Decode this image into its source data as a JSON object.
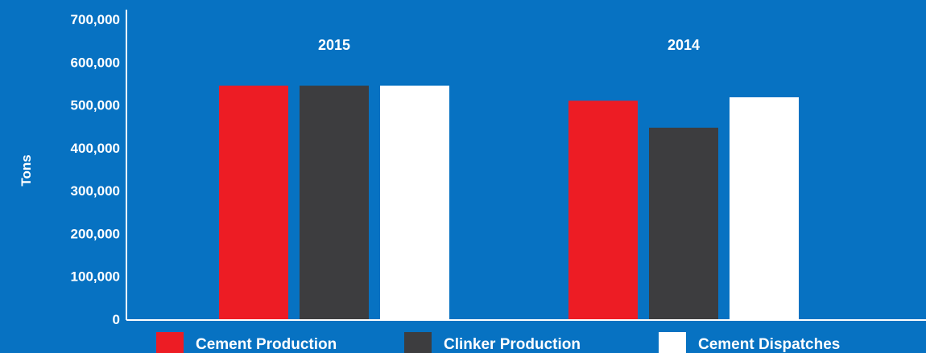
{
  "colors": {
    "background": "#0772c2",
    "axis": "#ffffff"
  },
  "chart_data": {
    "type": "bar",
    "title": "",
    "xlabel": "",
    "ylabel": "Tons",
    "ylim": [
      0,
      700000
    ],
    "yticks": [
      0,
      100000,
      200000,
      300000,
      400000,
      500000,
      600000,
      700000
    ],
    "ytick_labels": [
      "0",
      "100,000",
      "200,000",
      "300,000",
      "400,000",
      "500,000",
      "600,000",
      "700,000"
    ],
    "categories": [
      "2015",
      "2014"
    ],
    "grid": false,
    "legend_position": "bottom",
    "series": [
      {
        "name": "Cement Production",
        "color": "#ed1c24",
        "values": [
          545000,
          510000
        ]
      },
      {
        "name": "Clinker Production",
        "color": "#3d3d3f",
        "values": [
          545000,
          447000
        ]
      },
      {
        "name": "Cement Dispatches",
        "color": "#ffffff",
        "values": [
          545000,
          518000
        ]
      }
    ]
  }
}
